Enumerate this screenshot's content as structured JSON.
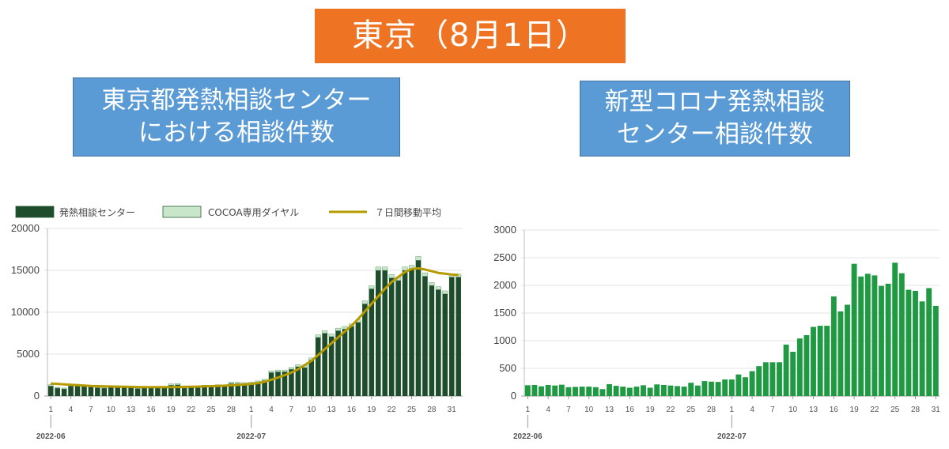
{
  "header": {
    "title": "東京（8月1日）"
  },
  "panels": {
    "left": {
      "title_lines": [
        "東京都発熱相談センター",
        "における相談件数"
      ]
    },
    "right": {
      "title_lines": [
        "新型コロナ発熱相談",
        "センター相談件数"
      ]
    }
  },
  "colors": {
    "banner": "#ee7424",
    "box": "#5b9bd5",
    "fever_bar": "#1e4d2b",
    "cocoa_bar": "#c8e6c9",
    "moving_avg": "#b59a00",
    "right_bar": "#1f9a42"
  },
  "chart_data": [
    {
      "type": "bar",
      "stacked": true,
      "legend": [
        "発熱相談センター",
        "COCOA専用ダイヤル",
        "７日間移動平均"
      ],
      "legend_position": "top",
      "ylim": [
        0,
        20000
      ],
      "yticks": [
        "0",
        "5000",
        "10000",
        "15000",
        "20000"
      ],
      "xtick_labels": [
        "1",
        "4",
        "7",
        "10",
        "13",
        "16",
        "19",
        "22",
        "25",
        "28",
        "1",
        "4",
        "7",
        "10",
        "13",
        "16",
        "19",
        "22",
        "25",
        "28",
        "31"
      ],
      "month_labels": [
        "2022-06",
        "2022-07"
      ],
      "grid": true,
      "dates_start": "2022-06-01",
      "series": [
        {
          "name": "発熱相談センター",
          "values": [
            1200,
            950,
            850,
            1200,
            1250,
            1150,
            1100,
            1000,
            950,
            1050,
            1000,
            1050,
            1000,
            900,
            1050,
            1000,
            1050,
            1050,
            1300,
            1350,
            950,
            1050,
            1050,
            1200,
            1100,
            1250,
            1200,
            1500,
            1500,
            1450,
            1500,
            1650,
            1850,
            2800,
            2900,
            2900,
            3200,
            3500,
            3400,
            4300,
            7000,
            7500,
            7100,
            7800,
            8000,
            8300,
            8800,
            11000,
            12800,
            15000,
            15000,
            14100,
            13800,
            15000,
            15200,
            16200,
            14300,
            13200,
            12700,
            12200,
            14200,
            14200
          ]
        },
        {
          "name": "COCOA専用ダイヤル",
          "values": [
            150,
            100,
            100,
            150,
            150,
            100,
            100,
            100,
            100,
            100,
            100,
            100,
            100,
            100,
            100,
            100,
            100,
            100,
            150,
            150,
            100,
            100,
            100,
            100,
            100,
            100,
            100,
            150,
            150,
            150,
            150,
            150,
            150,
            200,
            200,
            200,
            200,
            250,
            250,
            250,
            300,
            300,
            300,
            300,
            300,
            300,
            300,
            350,
            350,
            400,
            400,
            400,
            400,
            400,
            400,
            450,
            400,
            350,
            350,
            350,
            350,
            350
          ]
        },
        {
          "name": "７日間移動平均",
          "type": "line",
          "values": [
            1500,
            1450,
            1400,
            1350,
            1300,
            1250,
            1200,
            1180,
            1160,
            1140,
            1120,
            1100,
            1090,
            1080,
            1070,
            1060,
            1060,
            1060,
            1070,
            1080,
            1090,
            1100,
            1120,
            1150,
            1180,
            1210,
            1240,
            1280,
            1320,
            1380,
            1450,
            1550,
            1700,
            1950,
            2200,
            2500,
            2800,
            3200,
            3700,
            4200,
            4900,
            5600,
            6300,
            7000,
            7700,
            8400,
            9200,
            10100,
            11000,
            11900,
            12800,
            13600,
            14200,
            14800,
            15150,
            15250,
            15100,
            14900,
            14700,
            14600,
            14500,
            14450
          ]
        }
      ]
    },
    {
      "type": "bar",
      "ylim": [
        0,
        3000
      ],
      "yticks": [
        "0",
        "500",
        "1000",
        "1500",
        "2000",
        "2500",
        "3000"
      ],
      "xtick_labels": [
        "1",
        "4",
        "7",
        "10",
        "13",
        "16",
        "19",
        "22",
        "25",
        "28",
        "1",
        "4",
        "7",
        "10",
        "13",
        "16",
        "19",
        "22",
        "25",
        "28",
        "31"
      ],
      "month_labels": [
        "2022-06",
        "2022-07"
      ],
      "grid": true,
      "dates_start": "2022-06-01",
      "series": [
        {
          "name": "相談件数",
          "values": [
            195,
            200,
            175,
            200,
            190,
            205,
            160,
            165,
            170,
            170,
            160,
            125,
            215,
            185,
            170,
            150,
            170,
            195,
            150,
            210,
            200,
            190,
            180,
            170,
            240,
            190,
            270,
            260,
            255,
            300,
            300,
            390,
            340,
            450,
            540,
            610,
            610,
            610,
            930,
            800,
            1040,
            1100,
            1250,
            1270,
            1270,
            1800,
            1530,
            1650,
            2390,
            2160,
            2210,
            2180,
            1990,
            2030,
            2410,
            2220,
            1920,
            1900,
            1710,
            1950,
            1630
          ]
        }
      ]
    }
  ]
}
